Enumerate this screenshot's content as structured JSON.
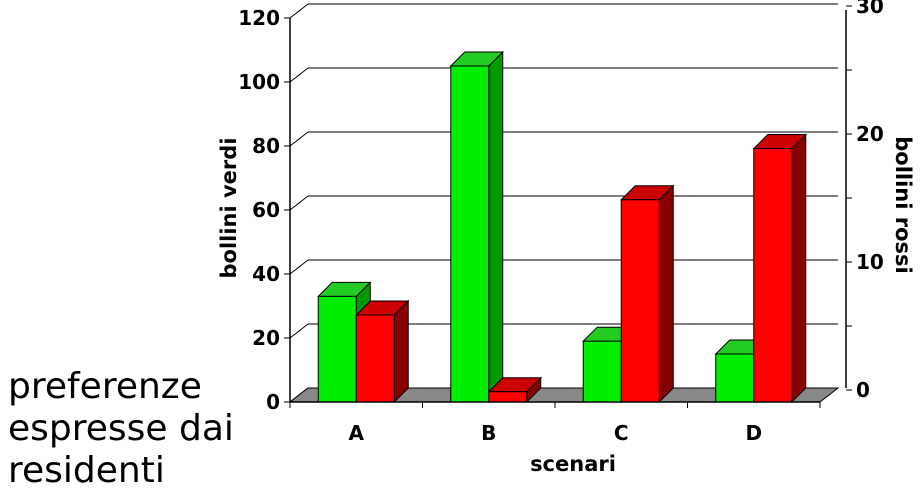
{
  "caption": [
    "preferenze",
    "espresse dai",
    "residenti"
  ],
  "chart_data": {
    "type": "bar",
    "style": "3d",
    "categories": [
      "A",
      "B",
      "C",
      "D"
    ],
    "xlabel": "scenari",
    "ylabel": "bollini verdi",
    "y2label": "bollini rossi",
    "ylim": [
      0,
      120
    ],
    "yticks": [
      0,
      20,
      40,
      60,
      80,
      100,
      120
    ],
    "y2lim": [
      0,
      30
    ],
    "y2ticks": [
      0,
      10,
      20,
      30
    ],
    "grid": true,
    "series": [
      {
        "axis": "left",
        "color": "#00ee00",
        "side_color": "#009900",
        "top_color": "#22cc22",
        "values": [
          33,
          105,
          19,
          15
        ]
      },
      {
        "axis": "right",
        "color": "#ff0000",
        "side_color": "#880000",
        "top_color": "#cc0000",
        "values": [
          6.8,
          0.8,
          15.8,
          19.8
        ]
      }
    ]
  }
}
